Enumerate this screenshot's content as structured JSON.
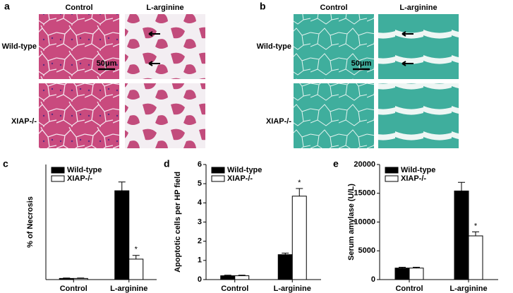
{
  "panels": [
    {
      "letter": "a",
      "columns": [
        "Control",
        "L-arginine"
      ],
      "rows": [
        "Wild-type",
        "XIAP-/-"
      ],
      "scale": "50μm"
    },
    {
      "letter": "b",
      "columns": [
        "Control",
        "L-arginine"
      ],
      "rows": [
        "Wild-type",
        "XIAP-/-"
      ],
      "scale": "50μm"
    }
  ],
  "chart_data": [
    {
      "type": "bar",
      "letter": "c",
      "ylabel": "% of Necrosis",
      "categories": [
        "Control",
        "L-arginine"
      ],
      "series": [
        {
          "name": "Wild-type",
          "color": "#000000",
          "values": [
            0.5,
            38.6
          ],
          "errors": [
            0.2,
            3.8
          ]
        },
        {
          "name": "XIAP-/-",
          "color": "#ffffff",
          "values": [
            0.5,
            8.9
          ],
          "errors": [
            0.2,
            1.6
          ]
        }
      ],
      "ylim": [
        0,
        50
      ],
      "annotation": "*"
    },
    {
      "type": "bar",
      "letter": "d",
      "ylabel": "Apoptotic cells per HP field",
      "categories": [
        "Control",
        "L-arginine"
      ],
      "series": [
        {
          "name": "Wild-type",
          "color": "#000000",
          "values": [
            0.2,
            1.3
          ],
          "errors": [
            0.03,
            0.08
          ]
        },
        {
          "name": "XIAP-/-",
          "color": "#ffffff",
          "values": [
            0.2,
            4.35
          ],
          "errors": [
            0.03,
            0.4
          ]
        }
      ],
      "ylim": [
        0,
        6
      ],
      "yticks": [
        0,
        1,
        2,
        3,
        4,
        5,
        6
      ],
      "annotation": "*"
    },
    {
      "type": "bar",
      "letter": "e",
      "ylabel": "Serum amylase  (U/L)",
      "categories": [
        "Control",
        "L-arginine"
      ],
      "series": [
        {
          "name": "Wild-type",
          "color": "#000000",
          "values": [
            2000,
            15400
          ],
          "errors": [
            150,
            1500
          ]
        },
        {
          "name": "XIAP-/-",
          "color": "#ffffff",
          "values": [
            2000,
            7600
          ],
          "errors": [
            150,
            700
          ]
        }
      ],
      "ylim": [
        0,
        20000
      ],
      "yticks": [
        0,
        5000,
        10000,
        15000,
        20000
      ],
      "annotation": "*"
    }
  ]
}
